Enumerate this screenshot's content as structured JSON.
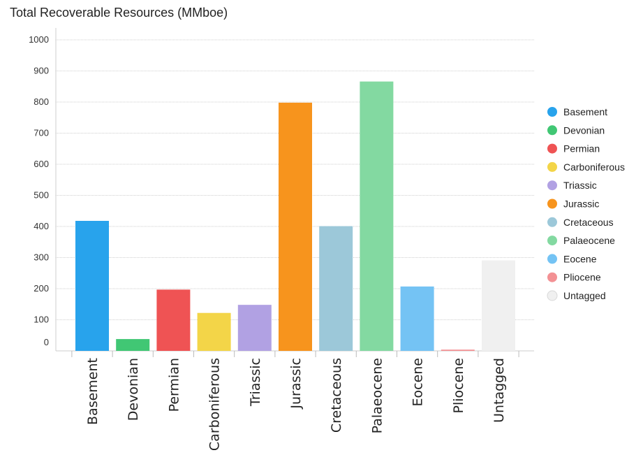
{
  "chart_data": {
    "type": "bar",
    "title": "Total Recoverable Resources (MMboe)",
    "xlabel": "",
    "ylabel": "",
    "categories": [
      "Basement",
      "Devonian",
      "Permian",
      "Carboniferous",
      "Triassic",
      "Jurassic",
      "Cretaceous",
      "Palaeocene",
      "Eocene",
      "Pliocene",
      "Untagged"
    ],
    "values": [
      418,
      38,
      197,
      122,
      148,
      798,
      401,
      866,
      207,
      4,
      291
    ],
    "colors": [
      "#28a3ec",
      "#41c774",
      "#ef5354",
      "#f3d548",
      "#b1a1e3",
      "#f7941d",
      "#9cc8d9",
      "#83d9a1",
      "#74c3f4",
      "#f39194",
      "#f0f0f0"
    ],
    "ylim": [
      0,
      1000
    ],
    "yticks": [
      "0",
      "100",
      "200",
      "300",
      "400",
      "500",
      "600",
      "700",
      "800",
      "900",
      "1000"
    ],
    "grid": true,
    "legend": {
      "position": "right",
      "entries": [
        "Basement",
        "Devonian",
        "Permian",
        "Carboniferous",
        "Triassic",
        "Jurassic",
        "Cretaceous",
        "Palaeocene",
        "Eocene",
        "Pliocene",
        "Untagged"
      ]
    }
  }
}
